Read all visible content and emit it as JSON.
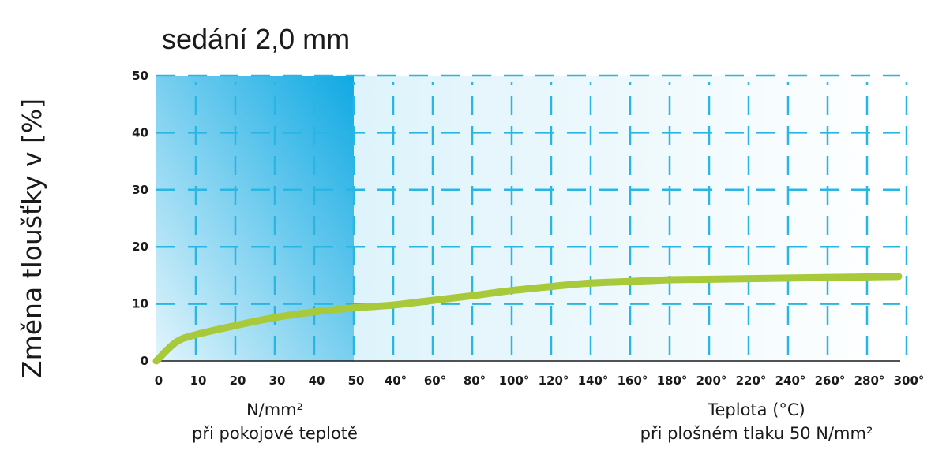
{
  "chart_data": {
    "type": "line",
    "title": "sedání 2,0 mm",
    "ylabel": "Změna tloušťky v [%]",
    "ylim": [
      0,
      50
    ],
    "yticks": [
      "0",
      "10",
      "20",
      "30",
      "40",
      "50"
    ],
    "grid": true,
    "xticks": [
      "0",
      "10",
      "20",
      "30",
      "40",
      "50",
      "40°",
      "60°",
      "80°",
      "100°",
      "120°",
      "140°",
      "160°",
      "180°",
      "200°",
      "220°",
      "240°",
      "260°",
      "280°",
      "300°"
    ],
    "xlabel_left": [
      "N/mm²",
      "při pokojové teplotě"
    ],
    "xlabel_right": [
      "Teplota (°C)",
      "při plošném tlaku 50 N/mm²"
    ],
    "segments": [
      {
        "xlabel": "N/mm² při pokojové teplotě",
        "x_unit": "N/mm²",
        "x": [
          0,
          5,
          10,
          20,
          30,
          40,
          50
        ],
        "y": [
          0,
          3.3,
          4.6,
          6.2,
          7.6,
          8.6,
          9.3
        ]
      },
      {
        "xlabel": "Teplota (°C) při plošném tlaku 50 N/mm²",
        "x_unit": "°C",
        "x": [
          40,
          60,
          80,
          100,
          120,
          140,
          160,
          180,
          200,
          220,
          240,
          260,
          280,
          300
        ],
        "y": [
          9.8,
          10.6,
          11.4,
          12.3,
          13.0,
          13.6,
          13.9,
          14.2,
          14.3,
          14.4,
          14.5,
          14.6,
          14.7,
          14.8
        ]
      }
    ],
    "colors": {
      "curve": "#a8c93a",
      "grid": "#29b6e3",
      "pressure_area": "#0fa9e3"
    }
  }
}
